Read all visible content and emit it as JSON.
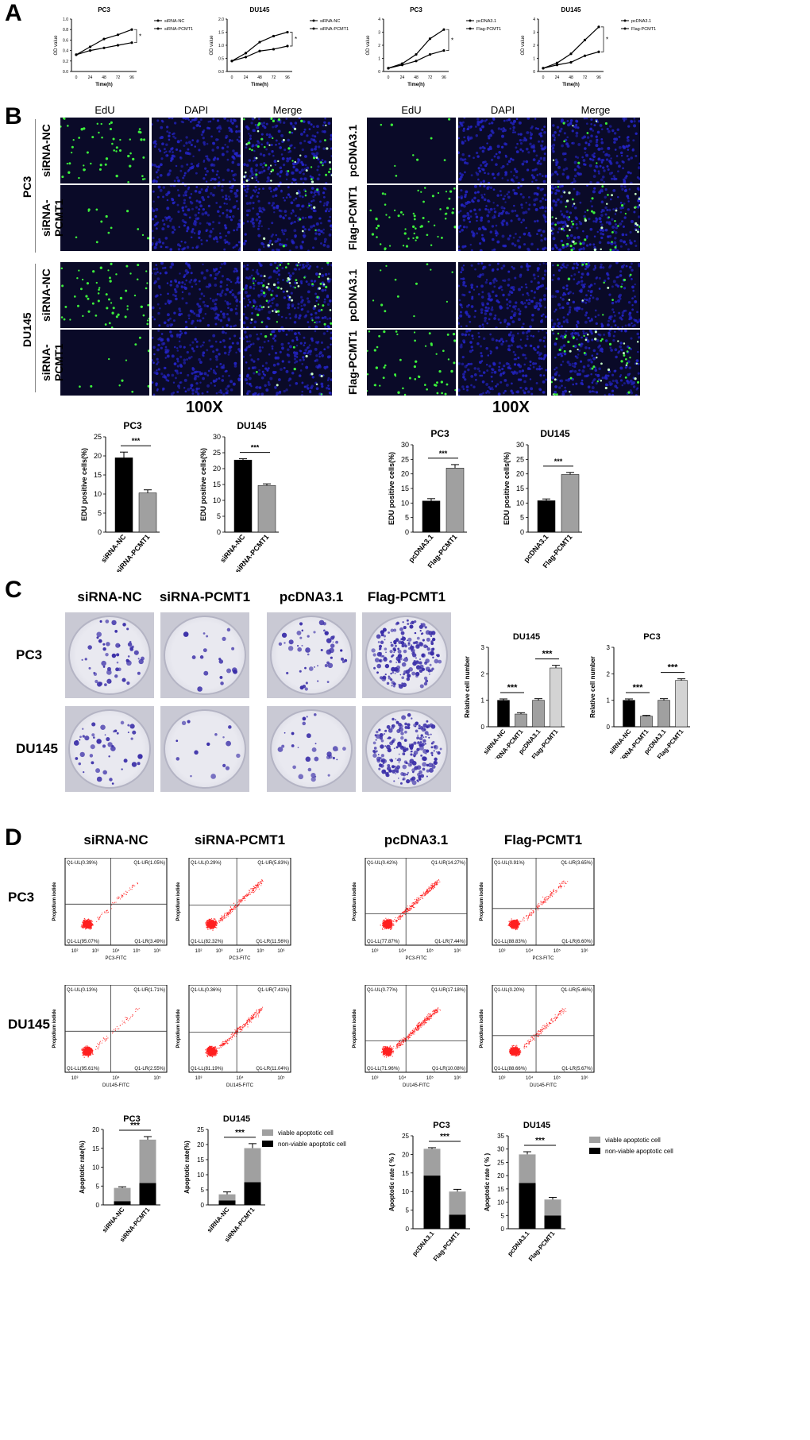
{
  "panels": {
    "a": "A",
    "b": "B",
    "c": "C",
    "d": "D"
  },
  "colors": {
    "black": "#000000",
    "gray": "#a0a0a0",
    "lightgray": "#d3d3d3",
    "dots": "#ff2020",
    "nuclei": "#2424c8",
    "edu": "#3cf03c",
    "crystal": "#3a2ea8"
  },
  "panelA": {
    "xlabel": "Time(h)",
    "ylabel": "OD value",
    "sig": "*",
    "chart_data": [
      {
        "type": "line",
        "title": "PC3",
        "x": [
          0,
          24,
          48,
          72,
          96
        ],
        "xticks": [
          "0",
          "24",
          "48",
          "72",
          "96"
        ],
        "ylim": [
          0,
          1.0
        ],
        "yticks": [
          "0.0",
          "0.2",
          "0.4",
          "0.6",
          "0.8",
          "1.0"
        ],
        "series": [
          {
            "name": "siRNA-NC",
            "values": [
              0.32,
              0.47,
              0.62,
              0.7,
              0.8
            ]
          },
          {
            "name": "siRNA-PCMT1",
            "values": [
              0.32,
              0.4,
              0.45,
              0.5,
              0.55
            ]
          }
        ]
      },
      {
        "type": "line",
        "title": "DU145",
        "x": [
          0,
          24,
          48,
          72,
          96
        ],
        "xticks": [
          "0",
          "24",
          "48",
          "72",
          "96"
        ],
        "ylim": [
          0,
          2.0
        ],
        "yticks": [
          "0.0",
          "0.5",
          "1.0",
          "1.5",
          "2.0"
        ],
        "series": [
          {
            "name": "siRNA-NC",
            "values": [
              0.4,
              0.7,
              1.12,
              1.35,
              1.5
            ]
          },
          {
            "name": "siRNA-PCMT1",
            "values": [
              0.4,
              0.55,
              0.78,
              0.85,
              0.97
            ]
          }
        ]
      },
      {
        "type": "line",
        "title": "PC3",
        "x": [
          0,
          24,
          48,
          72,
          96
        ],
        "xticks": [
          "0",
          "24",
          "48",
          "72",
          "96"
        ],
        "ylim": [
          0,
          4
        ],
        "yticks": [
          "0",
          "1",
          "2",
          "3",
          "4"
        ],
        "series": [
          {
            "name": "pcDNA3.1",
            "values": [
              0.25,
              0.6,
              1.3,
              2.5,
              3.2
            ]
          },
          {
            "name": "Flag-PCMT1",
            "values": [
              0.25,
              0.5,
              0.8,
              1.3,
              1.6
            ]
          }
        ]
      },
      {
        "type": "line",
        "title": "DU145",
        "x": [
          0,
          24,
          48,
          72,
          96
        ],
        "xticks": [
          "0",
          "24",
          "48",
          "72",
          "96"
        ],
        "ylim": [
          0,
          4
        ],
        "yticks": [
          "0",
          "1",
          "2",
          "3",
          "4"
        ],
        "series": [
          {
            "name": "pcDNA3.1",
            "values": [
              0.25,
              0.65,
              1.35,
              2.4,
              3.4
            ]
          },
          {
            "name": "Flag-PCMT1",
            "values": [
              0.25,
              0.5,
              0.7,
              1.2,
              1.5
            ]
          }
        ]
      }
    ]
  },
  "panelB": {
    "col_headers": [
      "EdU",
      "DAPI",
      "Merge"
    ],
    "left_rows": [
      "siRNA-NC",
      "siRNA-PCMT1",
      "siRNA-NC",
      "siRNA-PCMT1"
    ],
    "right_rows": [
      "pcDNA3.1",
      "Flag-PCMT1",
      "pcDNA3.1",
      "Flag-PCMT1"
    ],
    "groups": [
      "PC3",
      "DU145"
    ],
    "magnification": "100X",
    "ylabel": "EDU positive cells(%)",
    "sig": "***",
    "chart_data": [
      {
        "type": "bar",
        "title": "PC3",
        "categories": [
          "siRNA-NC",
          "siRNA-PCMT1"
        ],
        "values": [
          19.5,
          10.3
        ],
        "errors": [
          1.5,
          0.8
        ],
        "ylim": [
          0,
          25
        ],
        "yticks": [
          "0",
          "5",
          "10",
          "15",
          "20",
          "25"
        ]
      },
      {
        "type": "bar",
        "title": "DU145",
        "categories": [
          "siRNA-NC",
          "siRNA-PCMT1"
        ],
        "values": [
          22.7,
          14.7
        ],
        "errors": [
          0.4,
          0.5
        ],
        "ylim": [
          0,
          30
        ],
        "yticks": [
          "0",
          "5",
          "10",
          "15",
          "20",
          "25",
          "30"
        ]
      },
      {
        "type": "bar",
        "title": "PC3",
        "categories": [
          "pcDNA3.1",
          "Flag-PCMT1"
        ],
        "values": [
          10.7,
          22.0
        ],
        "errors": [
          0.8,
          1.2
        ],
        "ylim": [
          0,
          30
        ],
        "yticks": [
          "0",
          "5",
          "10",
          "15",
          "20",
          "25",
          "30"
        ]
      },
      {
        "type": "bar",
        "title": "DU145",
        "categories": [
          "pcDNA3.1",
          "Flag-PCMT1"
        ],
        "values": [
          10.8,
          19.8
        ],
        "errors": [
          0.6,
          0.7
        ],
        "ylim": [
          0,
          30
        ],
        "yticks": [
          "0",
          "5",
          "10",
          "15",
          "20",
          "25",
          "30"
        ]
      }
    ]
  },
  "panelC": {
    "col_headers": [
      "siRNA-NC",
      "siRNA-PCMT1",
      "pcDNA3.1",
      "Flag-PCMT1"
    ],
    "row_headers": [
      "PC3",
      "DU145"
    ],
    "ylabel": "Relative cell number",
    "sig": "***",
    "chart_data": [
      {
        "type": "bar",
        "title": "DU145",
        "categories": [
          "siRNA-NC",
          "siRNA-PCMT1",
          "pcDNA3.1",
          "Flag-PCMT1"
        ],
        "values": [
          1.0,
          0.48,
          1.0,
          2.22
        ],
        "errors": [
          0.05,
          0.05,
          0.06,
          0.1
        ],
        "ylim": [
          0,
          3
        ],
        "yticks": [
          "0",
          "1",
          "2",
          "3"
        ]
      },
      {
        "type": "bar",
        "title": "PC3",
        "categories": [
          "siRNA-NC",
          "siRNA-PCMT1",
          "pcDNA3.1",
          "Flag-PCMT1"
        ],
        "values": [
          1.0,
          0.4,
          1.0,
          1.75
        ],
        "errors": [
          0.05,
          0.03,
          0.06,
          0.06
        ],
        "ylim": [
          0,
          3
        ],
        "yticks": [
          "0",
          "1",
          "2",
          "3"
        ]
      }
    ]
  },
  "panelD": {
    "col_headers": [
      "siRNA-NC",
      "siRNA-PCMT1",
      "pcDNA3.1",
      "Flag-PCMT1"
    ],
    "row_headers": [
      "PC3",
      "DU145"
    ],
    "yaxis": "Propidium iodide",
    "flow": [
      {
        "x": "PC3-FITC",
        "ticks": [
          "10²",
          "10³",
          "10⁴",
          "10⁵",
          "10⁶"
        ],
        "ul": "Q1-UL(0.39%)",
        "ur": "Q1-UR(1.05%)",
        "ll": "Q1-LL(95.07%)",
        "lr": "Q1-LR(3.49%)"
      },
      {
        "x": "PC3-FITC",
        "ticks": [
          "10²",
          "10³",
          "10⁴",
          "10⁵",
          "10⁶"
        ],
        "ul": "Q1-UL(0.29%)",
        "ur": "Q1-UR(5.83%)",
        "ll": "Q1-LL(82.32%)",
        "lr": "Q1-LR(11.56%)"
      },
      {
        "x": "PC3-FITC",
        "ticks": [
          "10³",
          "10⁴",
          "10⁵",
          "10⁶"
        ],
        "ul": "Q1-UL(0.42%)",
        "ur": "Q1-UR(14.27%)",
        "ll": "Q1-LL(77.87%)",
        "lr": "Q1-LR(7.44%)"
      },
      {
        "x": "PC3-FITC",
        "ticks": [
          "10³",
          "10⁴",
          "10⁵",
          "10⁶"
        ],
        "ul": "Q1-UL(0.91%)",
        "ur": "Q1-UR(3.65%)",
        "ll": "Q1-LL(88.83%)",
        "lr": "Q1-LR(6.60%)"
      },
      {
        "x": "DU145-FITC",
        "ticks": [
          "10³",
          "10⁴",
          "10⁵"
        ],
        "ul": "Q1-UL(0.13%)",
        "ur": "Q1-UR(1.71%)",
        "ll": "Q1-LL(95.61%)",
        "lr": "Q1-LR(2.55%)"
      },
      {
        "x": "DU145-FITC",
        "ticks": [
          "10³",
          "10⁴",
          "10⁵"
        ],
        "ul": "Q1-UL(0.36%)",
        "ur": "Q1-UR(7.41%)",
        "ll": "Q1-LL(81.19%)",
        "lr": "Q1-LR(11.04%)"
      },
      {
        "x": "DU145-FITC",
        "ticks": [
          "10³",
          "10⁴",
          "10⁵",
          "10⁶"
        ],
        "ul": "Q1-UL(0.77%)",
        "ur": "Q1-UR(17.18%)",
        "ll": "Q1-LL(71.96%)",
        "lr": "Q1-LR(10.08%)"
      },
      {
        "x": "DU145-FITC",
        "ticks": [
          "10³",
          "10⁴",
          "10⁵",
          "10⁶"
        ],
        "ul": "Q1-UL(0.20%)",
        "ur": "Q1-UR(5.46%)",
        "ll": "Q1-LL(88.66%)",
        "lr": "Q1-LR(5.67%)"
      }
    ],
    "ylabel_a": "Apoptotic rate(%)",
    "ylabel_b": "Apoptotic rate ( % )",
    "sig": "***",
    "chart_data": [
      {
        "type": "bar",
        "title": "PC3",
        "categories": [
          "siRNA-NC",
          "siRNA-PCMT1"
        ],
        "ylim": [
          0,
          20
        ],
        "yticks": [
          "0",
          "5",
          "10",
          "15",
          "20"
        ],
        "series": [
          {
            "name": "non-viable apoptotic cell",
            "values": [
              1.0,
              5.8
            ]
          },
          {
            "name": "viable apoptotic cell",
            "values": [
              3.5,
              11.5
            ]
          }
        ],
        "totals": [
          4.5,
          17.3
        ],
        "errors": [
          0.3,
          0.8
        ]
      },
      {
        "type": "bar",
        "title": "DU145",
        "categories": [
          "siRNA-NC",
          "siRNA-PCMT1"
        ],
        "ylim": [
          0,
          25
        ],
        "yticks": [
          "0",
          "5",
          "10",
          "15",
          "20",
          "25"
        ],
        "series": [
          {
            "name": "non-viable apoptotic cell",
            "values": [
              1.5,
              7.5
            ]
          },
          {
            "name": "viable apoptotic cell",
            "values": [
              2.0,
              11.3
            ]
          }
        ],
        "totals": [
          3.5,
          18.8
        ],
        "errors": [
          0.8,
          1.5
        ]
      },
      {
        "type": "bar",
        "title": "PC3",
        "categories": [
          "pcDNA3.1",
          "Flag-PCMT1"
        ],
        "ylim": [
          0,
          25
        ],
        "yticks": [
          "0",
          "5",
          "10",
          "15",
          "20",
          "25"
        ],
        "series": [
          {
            "name": "non-viable apoptotic cell",
            "values": [
              14.3,
              3.8
            ]
          },
          {
            "name": "viable apoptotic cell",
            "values": [
              7.2,
              6.2
            ]
          }
        ],
        "totals": [
          21.5,
          10.0
        ],
        "errors": [
          0.3,
          0.6
        ]
      },
      {
        "type": "bar",
        "title": "DU145",
        "categories": [
          "pcDNA3.1",
          "Flag-PCMT1"
        ],
        "ylim": [
          0,
          35
        ],
        "yticks": [
          "0",
          "5",
          "10",
          "15",
          "20",
          "25",
          "30",
          "35"
        ],
        "series": [
          {
            "name": "non-viable apoptotic cell",
            "values": [
              17.2,
              5.0
            ]
          },
          {
            "name": "viable apoptotic cell",
            "values": [
              10.8,
              6.0
            ]
          }
        ],
        "totals": [
          28.0,
          11.0
        ],
        "errors": [
          1.0,
          0.8
        ]
      }
    ]
  }
}
